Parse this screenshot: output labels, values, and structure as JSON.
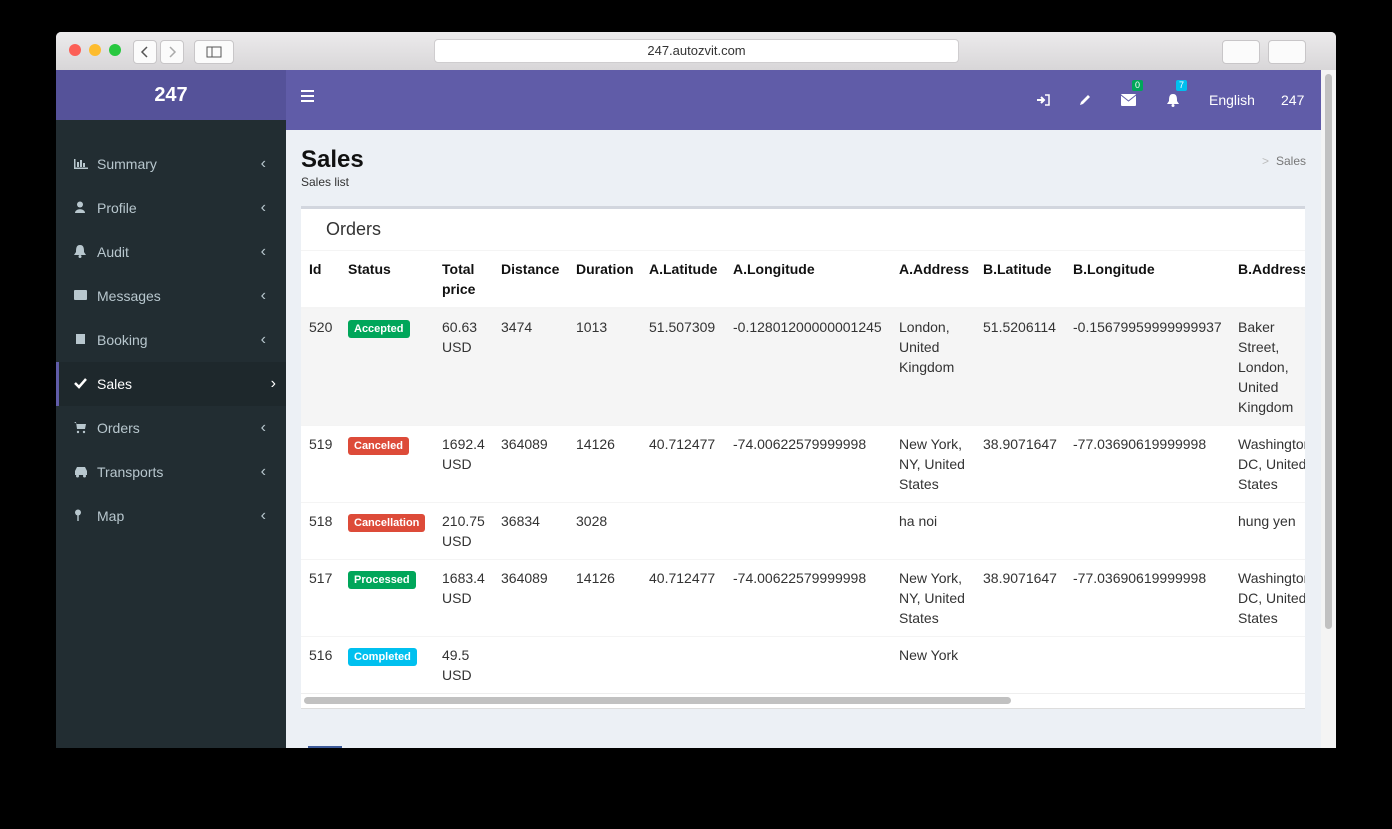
{
  "browser": {
    "url": "247.autozvit.com"
  },
  "sidebar": {
    "brand": "247",
    "menu": [
      {
        "label": "Summary",
        "active": false
      },
      {
        "label": "Profile",
        "active": false
      },
      {
        "label": "Audit",
        "active": false
      },
      {
        "label": "Messages",
        "active": false
      },
      {
        "label": "Booking",
        "active": false
      },
      {
        "label": "Sales",
        "active": true
      },
      {
        "label": "Orders",
        "active": false
      },
      {
        "label": "Transports",
        "active": false
      },
      {
        "label": "Map",
        "active": false
      }
    ]
  },
  "topbar": {
    "mail_count": 0,
    "notification_count": 7,
    "language": "English",
    "user": "247"
  },
  "page": {
    "title": "Sales",
    "subtitle": "Sales list",
    "breadcrumb": "Sales"
  },
  "table": {
    "title": "Orders",
    "columns": [
      "Id",
      "Status",
      "Total price",
      "Distance",
      "Duration",
      "A.Latitude",
      "A.Longitude",
      "A.Address",
      "B.Latitude",
      "B.Longitude",
      "B.Address"
    ],
    "rows": [
      [
        520,
        {
          "text": "Accepted",
          "color": "#00a65a"
        },
        "60.63 USD",
        3474,
        1013,
        51.507309,
        "-0.12801200000001245",
        "London, United Kingdom",
        51.5206114,
        "-0.15679959999999937",
        "Baker Street, London, United Kingdom"
      ],
      [
        519,
        {
          "text": "Canceled",
          "color": "#dd4b39"
        },
        "1692.4 USD",
        364089,
        14126,
        40.712477,
        "-74.00622579999998",
        "New York, NY, United States",
        38.9071647,
        "-77.03690619999998",
        "Washington, DC, United States"
      ],
      [
        518,
        {
          "text": "Cancellation",
          "color": "#dd4b39"
        },
        "210.75 USD",
        36834,
        3028,
        null,
        null,
        "ha noi",
        null,
        null,
        "hung yen"
      ],
      [
        517,
        {
          "text": "Processed",
          "color": "#00a65a"
        },
        "1683.4 USD",
        364089,
        14126,
        40.712477,
        "-74.00622579999998",
        "New York, NY, United States",
        38.9071647,
        "-77.03690619999998",
        "Washington, DC, United States"
      ],
      [
        516,
        {
          "text": "Completed",
          "color": "#00c0ef"
        },
        "49.5 USD",
        null,
        null,
        null,
        null,
        "New York",
        null,
        null,
        null
      ]
    ]
  }
}
